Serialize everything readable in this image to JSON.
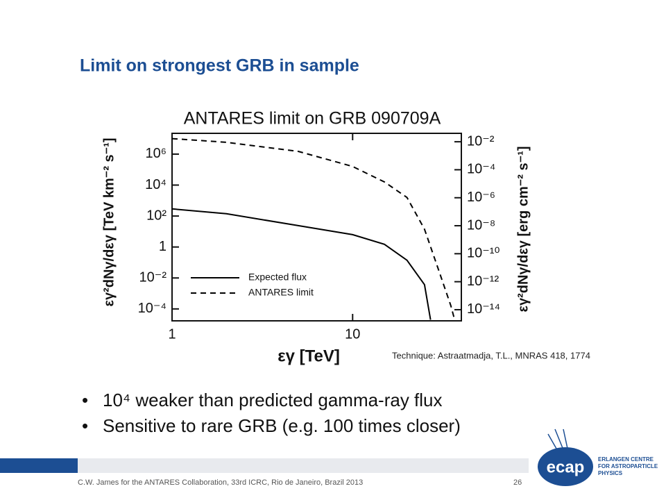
{
  "slide": {
    "title": "Limit on strongest GRB in sample",
    "source": "Technique: Astraatmadja, T.L., MNRAS 418, 1774",
    "bullets": [
      "10⁴ weaker than predicted gamma-ray flux",
      "Sensitive to rare GRB (e.g. 100 times closer)"
    ],
    "footer": "C.W. James for the ANTARES Collaboration, 33rd ICRC, Rio de Janeiro, Brazil 2013",
    "page": "26",
    "logo": {
      "name": "ecap",
      "lines": [
        "ERLANGEN CENTRE",
        "FOR ASTROPARTICLE",
        "PHYSICS"
      ]
    }
  },
  "chart_data": {
    "type": "line",
    "title": "ANTARES limit on GRB 090709A",
    "x_label": "εγ [TeV]",
    "y_label": "εγ²dNγ/dεγ [TeV km⁻² s⁻¹]",
    "y2_label": "εγ²dNγ/dεγ [erg cm⁻² s⁻¹]",
    "x_log": true,
    "y_log": true,
    "y2_log": true,
    "xlim": [
      1,
      40
    ],
    "xticks": [
      1,
      10
    ],
    "ylim": [
      1.7e-05,
      22000000
    ],
    "yticks": [
      {
        "value": 1000000,
        "label": "10⁶"
      },
      {
        "value": 10000,
        "label": "10⁴"
      },
      {
        "value": 100,
        "label": "10²"
      },
      1,
      {
        "value": 0.01,
        "label": "10⁻²"
      },
      {
        "value": 0.0001,
        "label": "10⁻⁴"
      }
    ],
    "y2lim": [
      1.6e-15,
      0.04
    ],
    "y2ticks": [
      {
        "value": 0.01,
        "label": "10⁻²"
      },
      {
        "value": 0.0001,
        "label": "10⁻⁴"
      },
      {
        "value": 1e-06,
        "label": "10⁻⁶"
      },
      {
        "value": 1e-08,
        "label": "10⁻⁸"
      },
      {
        "value": 1e-10,
        "label": "10⁻¹⁰"
      },
      {
        "value": 1e-12,
        "label": "10⁻¹²"
      },
      {
        "value": 1e-14,
        "label": "10⁻¹⁴"
      }
    ],
    "legend": "lower-left",
    "series": [
      {
        "name": "Expected flux",
        "color": "#000000",
        "line_style": "solid",
        "x": [
          1,
          2,
          5,
          10,
          15,
          20,
          25,
          27
        ],
        "values": [
          290,
          140,
          24,
          6.3,
          1.5,
          0.14,
          0.0037,
          2e-05
        ]
      },
      {
        "name": "ANTARES limit",
        "color": "#000000",
        "line_style": "dashed",
        "x": [
          1,
          2,
          5,
          10,
          15,
          20,
          25,
          30,
          35,
          36.7
        ],
        "values": [
          10000000,
          5800000,
          1500000,
          160000,
          16000,
          1600,
          14,
          0.03,
          0.00016,
          2e-05
        ]
      }
    ]
  }
}
